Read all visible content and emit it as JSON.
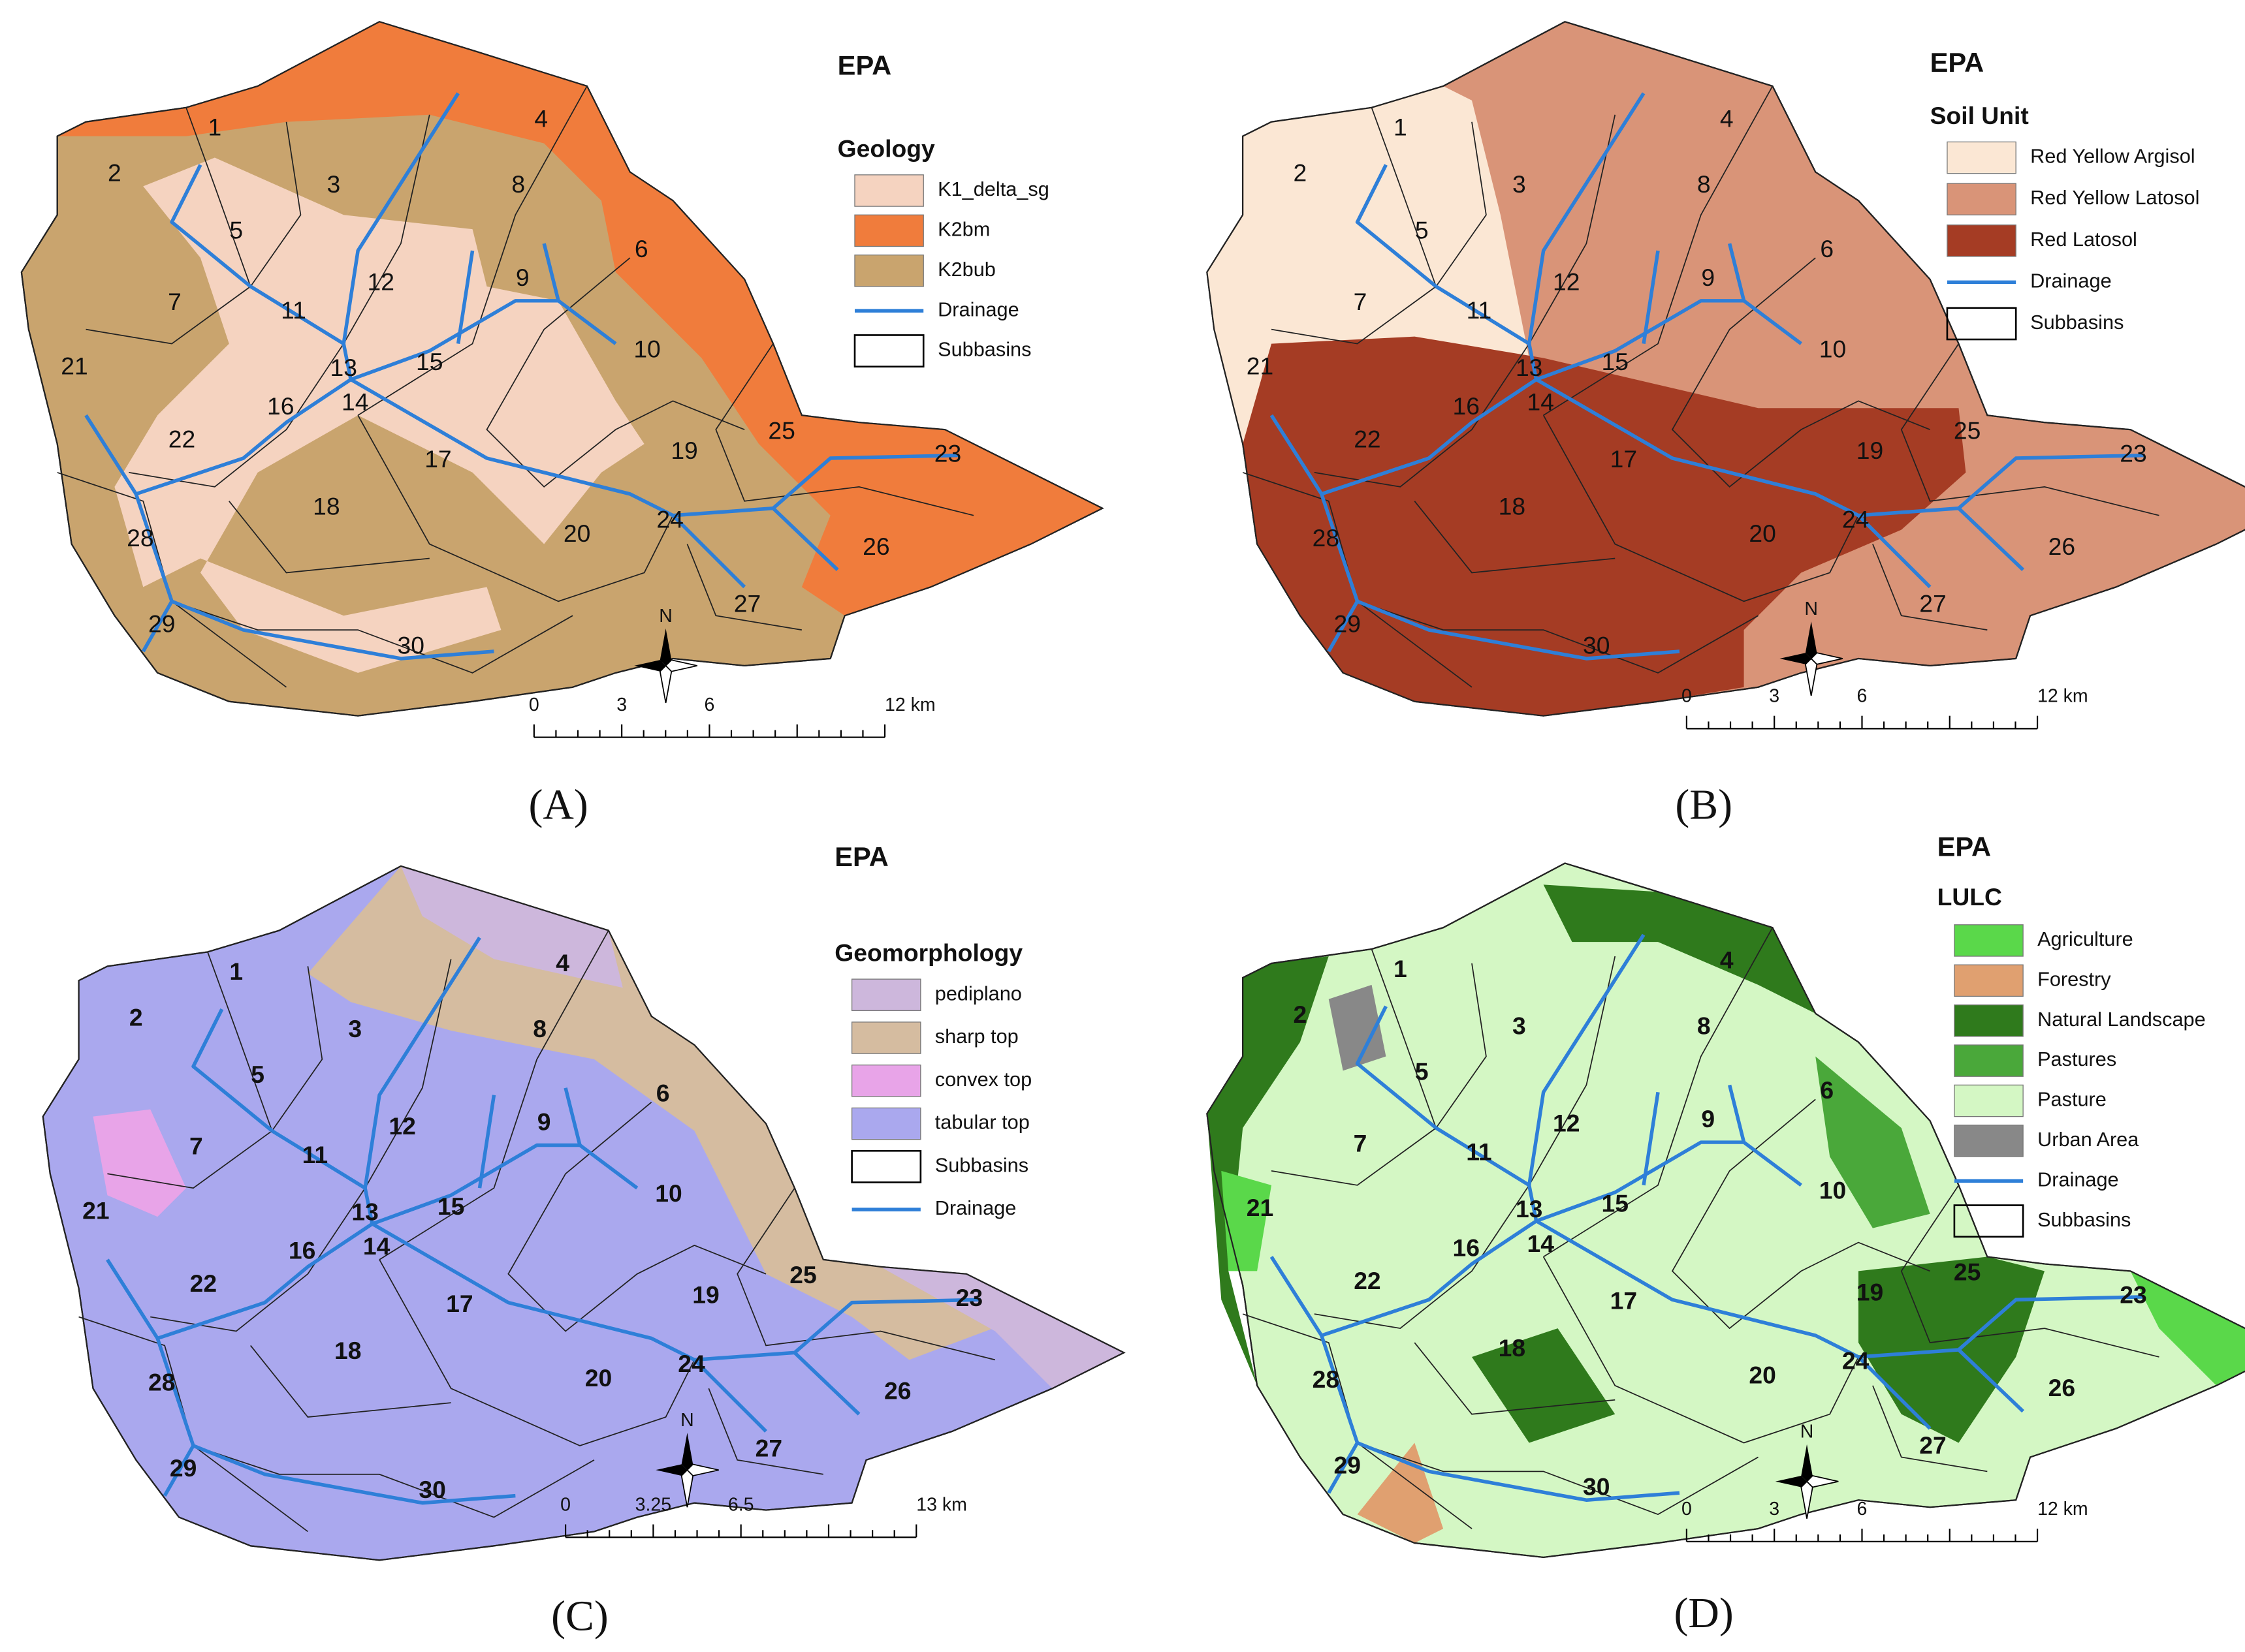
{
  "panels": [
    {
      "label": "(A)",
      "title": "EPA",
      "legend_title": "Geology",
      "legend": [
        {
          "label": "K1_delta_sg",
          "kind": "fill",
          "color": "#f5d3c0"
        },
        {
          "label": "K2bm",
          "kind": "fill",
          "color": "#f07c3c"
        },
        {
          "label": "K2bub",
          "kind": "fill",
          "color": "#c9a46e"
        },
        {
          "label": "Drainage",
          "kind": "line",
          "color": "#2e7fd8"
        },
        {
          "label": "Subbasins",
          "kind": "outline",
          "color": "#000000"
        }
      ],
      "scale": [
        "0",
        "3",
        "6",
        "12 km"
      ],
      "north": "N"
    },
    {
      "label": "(B)",
      "title": "EPA",
      "legend_title": "Soil Unit",
      "legend": [
        {
          "label": "Red Yellow Argisol",
          "kind": "fill",
          "color": "#fbe7d4"
        },
        {
          "label": "Red Yellow Latosol",
          "kind": "fill",
          "color": "#d99478"
        },
        {
          "label": "Red Latosol",
          "kind": "fill",
          "color": "#a53c24"
        },
        {
          "label": "Drainage",
          "kind": "line",
          "color": "#2e7fd8"
        },
        {
          "label": "Subbasins",
          "kind": "outline",
          "color": "#000000"
        }
      ],
      "scale": [
        "0",
        "3",
        "6",
        "12 km"
      ],
      "north": "N"
    },
    {
      "label": "(C)",
      "title": "EPA",
      "legend_title": "Geomorphology",
      "legend": [
        {
          "label": "pediplano",
          "kind": "fill",
          "color": "#cdb7dc"
        },
        {
          "label": "sharp top",
          "kind": "fill",
          "color": "#d5bca0"
        },
        {
          "label": "convex top",
          "kind": "fill",
          "color": "#e8a4e8"
        },
        {
          "label": "tabular top",
          "kind": "fill",
          "color": "#aaa8ee"
        },
        {
          "label": "Subbasins",
          "kind": "outline",
          "color": "#000000"
        },
        {
          "label": "Drainage",
          "kind": "line",
          "color": "#2e7fd8"
        }
      ],
      "scale": [
        "0",
        "3.25",
        "6.5",
        "13 km"
      ],
      "north": "N"
    },
    {
      "label": "(D)",
      "title": "EPA",
      "legend_title": "LULC",
      "legend": [
        {
          "label": "Agriculture",
          "kind": "fill",
          "color": "#5ad84a"
        },
        {
          "label": "Forestry",
          "kind": "fill",
          "color": "#e0a070"
        },
        {
          "label": "Natural Landscape",
          "kind": "fill",
          "color": "#2f7a1c"
        },
        {
          "label": "Pastures",
          "kind": "fill",
          "color": "#4aa83a"
        },
        {
          "label": "Pasture",
          "kind": "fill",
          "color": "#d4f7c4"
        },
        {
          "label": "Urban Area",
          "kind": "fill",
          "color": "#888888"
        },
        {
          "label": "Drainage",
          "kind": "line",
          "color": "#2e7fd8"
        },
        {
          "label": "Subbasins",
          "kind": "outline",
          "color": "#000000"
        }
      ],
      "scale": [
        "0",
        "3",
        "6",
        "12 km"
      ],
      "north": "N"
    }
  ],
  "subbasin_labels": [
    "1",
    "2",
    "3",
    "4",
    "5",
    "6",
    "7",
    "8",
    "9",
    "10",
    "11",
    "12",
    "13",
    "14",
    "15",
    "16",
    "17",
    "18",
    "19",
    "20",
    "21",
    "22",
    "23",
    "24",
    "25",
    "26",
    "27",
    "28",
    "29",
    "30"
  ]
}
